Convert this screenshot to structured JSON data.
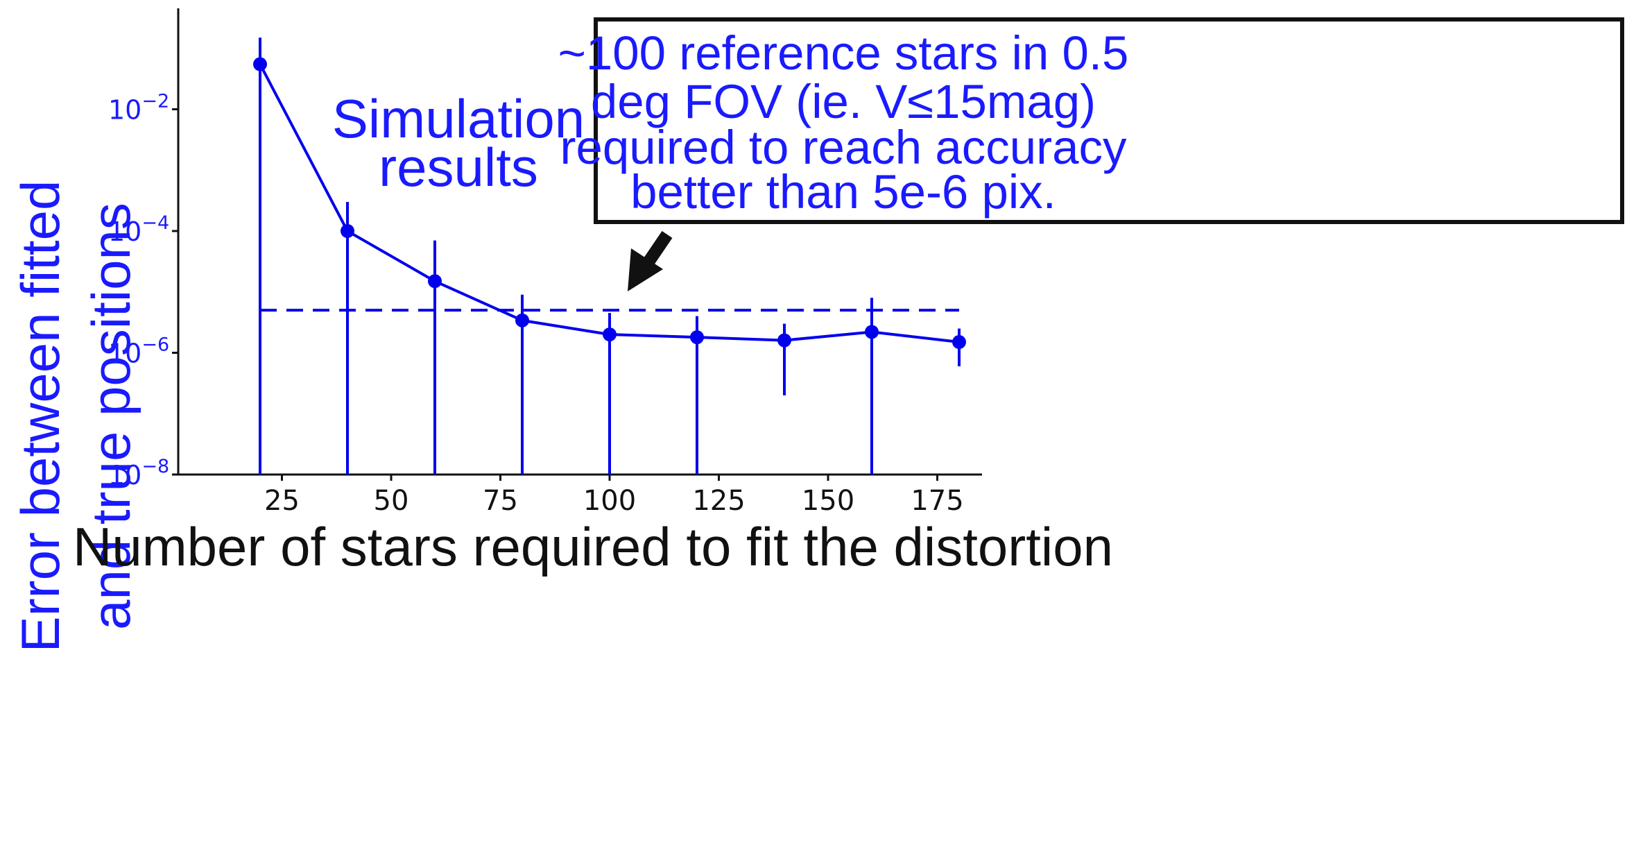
{
  "chart_data": {
    "type": "line",
    "xlabel": "Number of stars required to fit the distortion",
    "ylabel_lines": [
      "Error between fitted",
      "and true positions"
    ],
    "y_scale": "log",
    "xlim": [
      0,
      186
    ],
    "ylim": [
      1e-08,
      0.3
    ],
    "x_ticks": [
      25,
      50,
      75,
      100,
      125,
      150,
      175
    ],
    "y_ticks": [
      {
        "value": 1e-08,
        "base": "10",
        "exp": "−8"
      },
      {
        "value": 1e-06,
        "base": "10",
        "exp": "−6"
      },
      {
        "value": 0.0001,
        "base": "10",
        "exp": "−4"
      },
      {
        "value": 0.01,
        "base": "10",
        "exp": "−2"
      }
    ],
    "grid": false,
    "series": [
      {
        "x": [
          20,
          40,
          60,
          80,
          100,
          120,
          140,
          160,
          180
        ],
        "y": [
          0.055,
          0.0001,
          1.5e-05,
          3.4e-06,
          2e-06,
          1.8e-06,
          1.6e-06,
          2.2e-06,
          1.5e-06
        ],
        "err_low": [
          1e-08,
          1e-08,
          1e-08,
          1e-08,
          1e-08,
          1e-08,
          2e-07,
          1e-08,
          6e-07
        ],
        "err_high": [
          0.15,
          0.0003,
          7e-05,
          9e-06,
          4.5e-06,
          4e-06,
          3e-06,
          8e-06,
          2.5e-06
        ],
        "color": "#0000ee"
      }
    ],
    "threshold": {
      "y": 5e-06,
      "x_range": [
        20,
        180
      ],
      "style": "dashed",
      "color": "#0000ee"
    },
    "annotations": {
      "simulation": [
        "Simulation",
        "results"
      ],
      "box": [
        "~100 reference stars in 0.5",
        "deg FOV (ie. V≤15mag)",
        "required to reach accuracy",
        "better than 5e-6 pix."
      ]
    },
    "colors": {
      "series": "#0000ee",
      "label_blue": "#1a1aff",
      "axis": "#111111"
    }
  }
}
